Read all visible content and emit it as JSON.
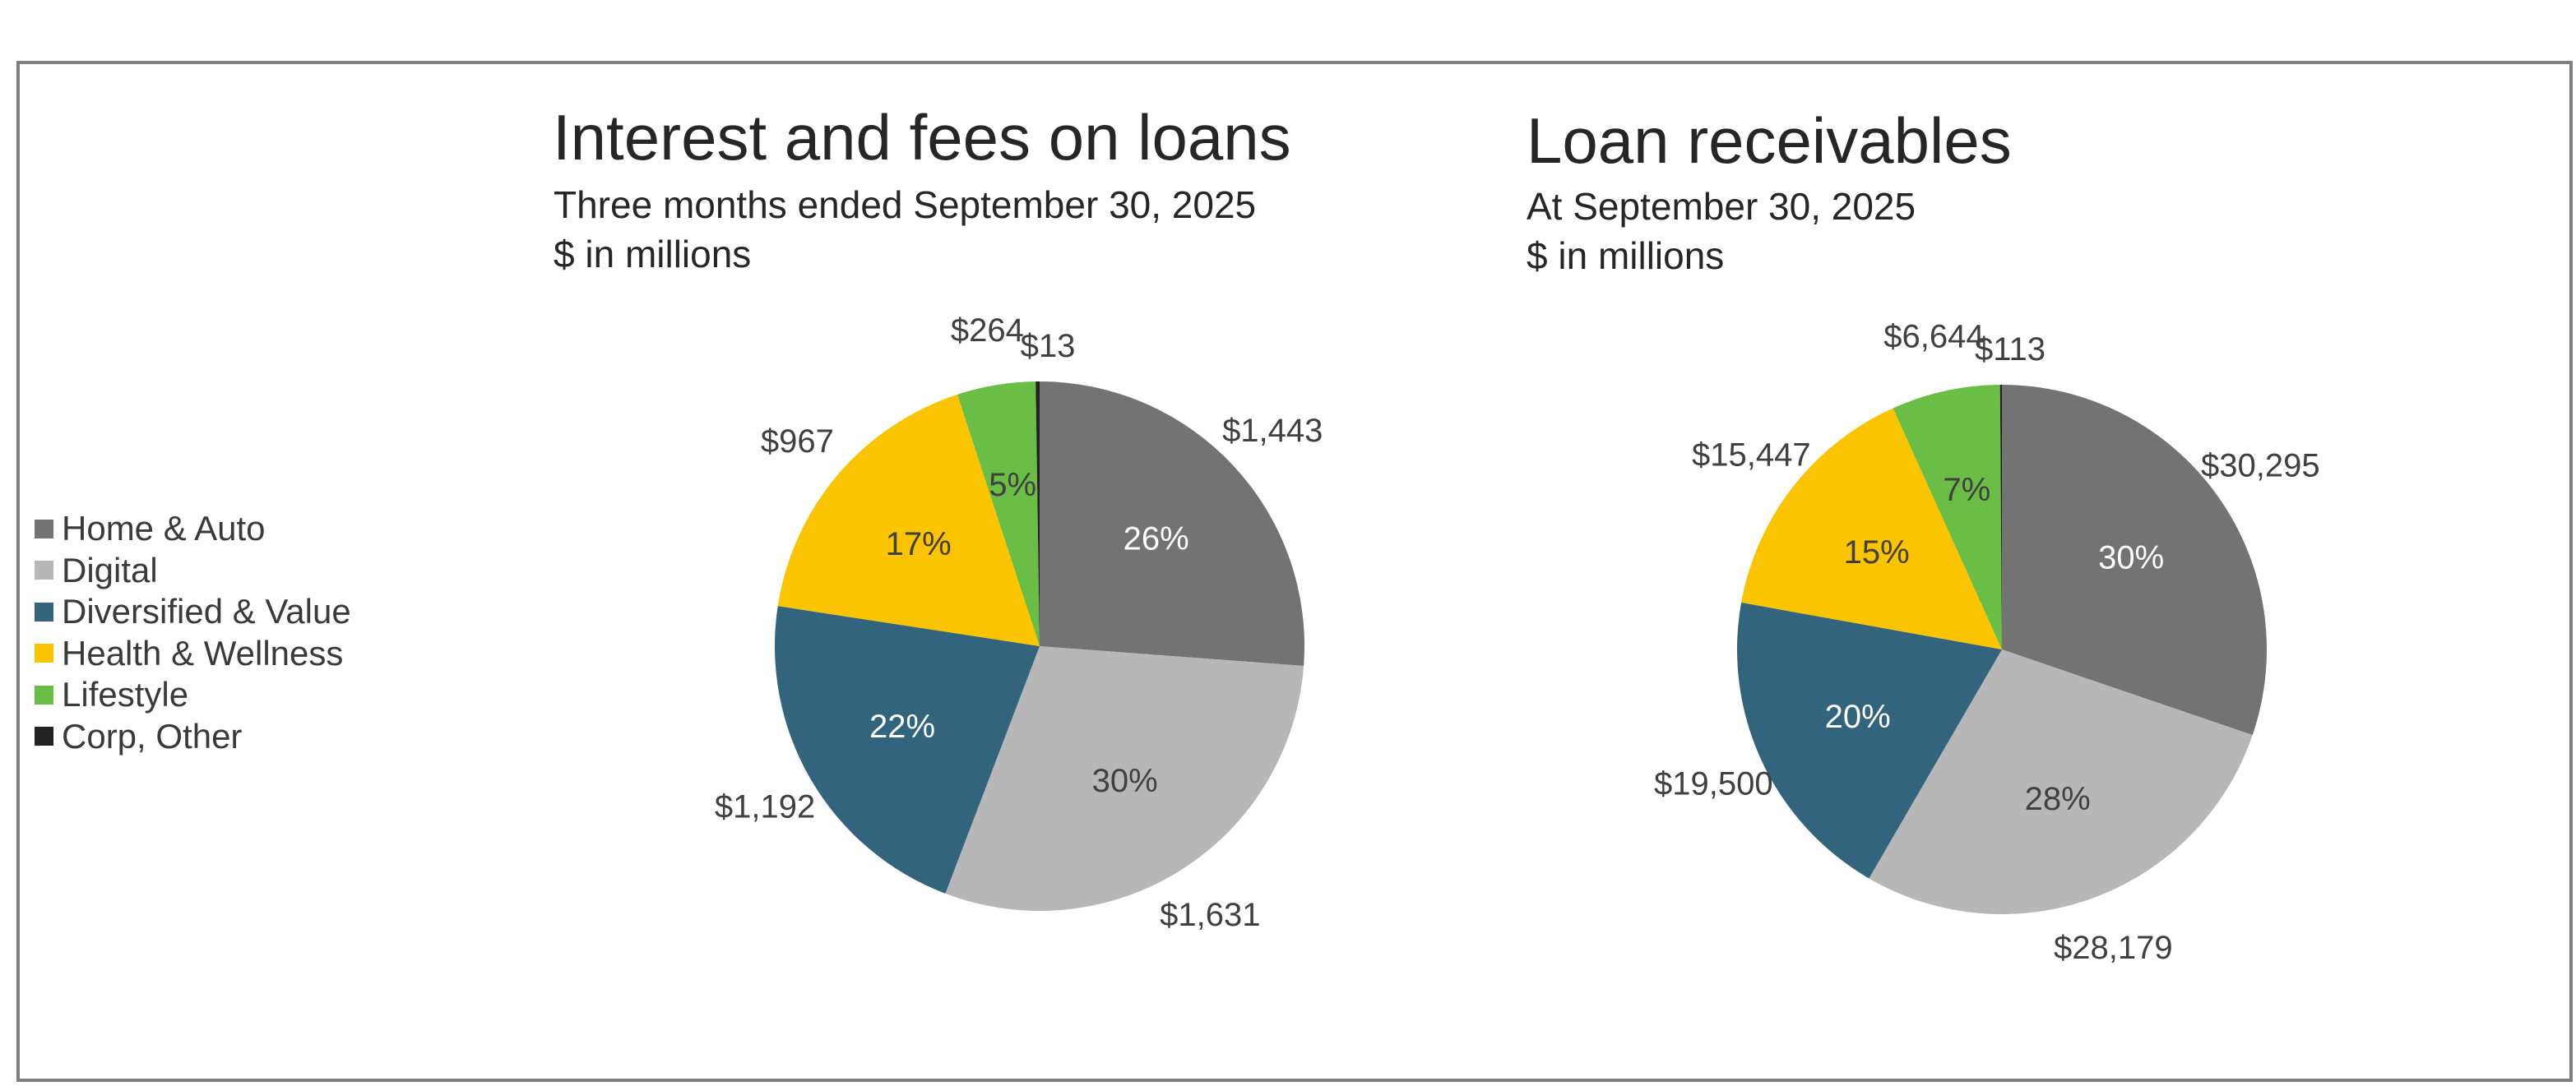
{
  "legend": [
    {
      "label": "Home & Auto",
      "color": "#737373"
    },
    {
      "label": "Digital",
      "color": "#b7b7b7"
    },
    {
      "label": "Diversified & Value",
      "color": "#33647e"
    },
    {
      "label": "Health & Wellness",
      "color": "#fac400"
    },
    {
      "label": "Lifestyle",
      "color": "#6abd45"
    },
    {
      "label": "Corp, Other",
      "color": "#222222"
    }
  ],
  "chart_data": [
    {
      "type": "pie",
      "title": "Interest and fees on loans",
      "subtitle": "Three months ended September 30, 2025",
      "unit": "$ in millions",
      "categories": [
        "Home & Auto",
        "Digital",
        "Diversified & Value",
        "Health & Wellness",
        "Lifestyle",
        "Corp, Other"
      ],
      "values": [
        1443,
        1631,
        1192,
        967,
        264,
        13
      ],
      "value_labels": [
        "$1,443",
        "$1,631",
        "$1,192",
        "$967",
        "$264",
        "$13"
      ],
      "percent_labels": [
        "26%",
        "30%",
        "22%",
        "17%",
        "5%",
        ""
      ],
      "legend_position": "left"
    },
    {
      "type": "pie",
      "title": "Loan receivables",
      "subtitle": "At September 30, 2025",
      "unit": "$ in millions",
      "categories": [
        "Home & Auto",
        "Digital",
        "Diversified & Value",
        "Health & Wellness",
        "Lifestyle",
        "Corp, Other"
      ],
      "values": [
        30295,
        28179,
        19500,
        15447,
        6644,
        113
      ],
      "value_labels": [
        "$30,295",
        "$28,179",
        "$19,500",
        "$15,447",
        "$6,644",
        "$113"
      ],
      "percent_labels": [
        "30%",
        "28%",
        "20%",
        "15%",
        "7%",
        ""
      ],
      "legend_position": "left"
    }
  ]
}
